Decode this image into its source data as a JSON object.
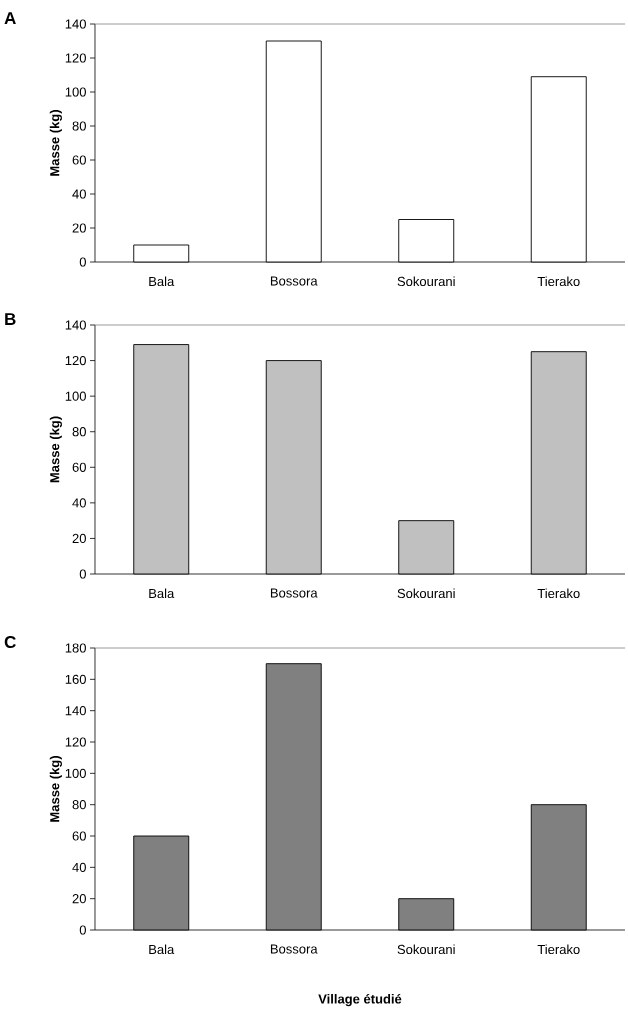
{
  "chart_data": [
    {
      "type": "bar",
      "title": "A",
      "ylabel": "Masse (kg)",
      "categories": [
        "Bala",
        "Bossora",
        "Sokourani",
        "Tierako"
      ],
      "values": [
        10,
        130,
        25,
        109
      ],
      "color": "#ffffff",
      "ylim": [
        0,
        140
      ],
      "yticks": [
        0,
        20,
        40,
        60,
        80,
        100,
        120,
        140
      ]
    },
    {
      "type": "bar",
      "title": "B",
      "ylabel": "Masse (kg)",
      "categories": [
        "Bala",
        "Bossora",
        "Sokourani",
        "Tierako"
      ],
      "values": [
        129,
        120,
        30,
        125
      ],
      "color": "#c0c0c0",
      "ylim": [
        0,
        140
      ],
      "yticks": [
        0,
        20,
        40,
        60,
        80,
        100,
        120,
        140
      ]
    },
    {
      "type": "bar",
      "title": "C",
      "ylabel": "Masse (kg)",
      "xlabel": "Village étudié",
      "categories": [
        "Bala",
        "Bossora",
        "Sokourani",
        "Tierako"
      ],
      "values": [
        60,
        170,
        20,
        80
      ],
      "color": "#808080",
      "ylim": [
        0,
        180
      ],
      "yticks": [
        0,
        20,
        40,
        60,
        80,
        100,
        120,
        140,
        160,
        180
      ]
    }
  ]
}
